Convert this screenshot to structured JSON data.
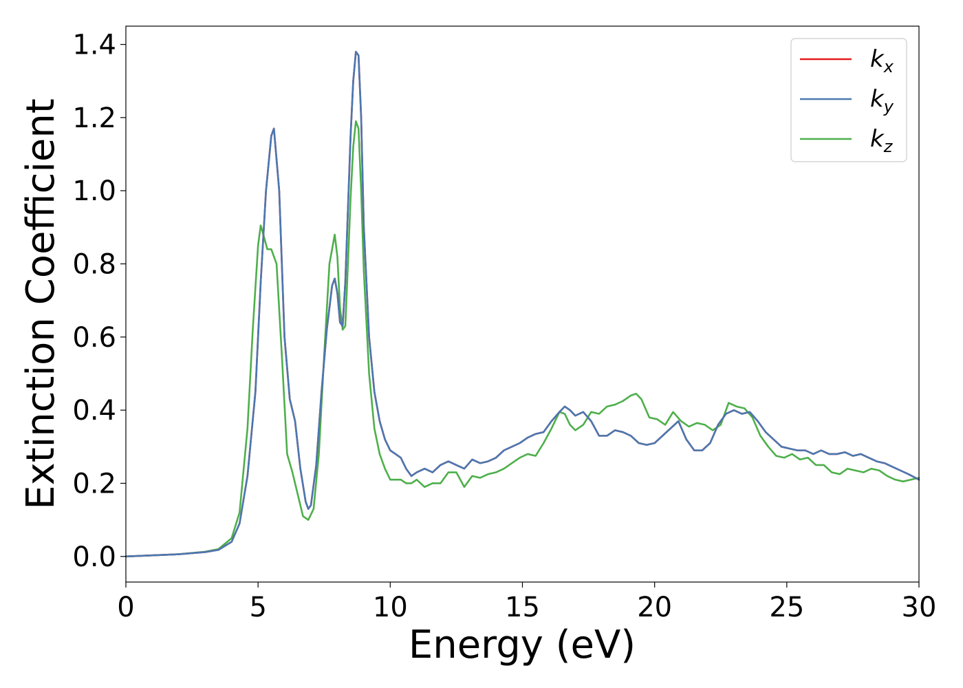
{
  "chart_data": {
    "type": "line",
    "title": "",
    "xlabel": "Energy (eV)",
    "ylabel": "Extinction Coefficient",
    "xlim": [
      0,
      30
    ],
    "ylim": [
      -0.07,
      1.45
    ],
    "xticks": [
      0,
      5,
      10,
      15,
      20,
      25,
      30
    ],
    "xtick_labels": [
      "0",
      "5",
      "10",
      "15",
      "20",
      "25",
      "30"
    ],
    "yticks": [
      0.0,
      0.2,
      0.4,
      0.6,
      0.8,
      1.0,
      1.2,
      1.4
    ],
    "ytick_labels": [
      "0.0",
      "0.2",
      "0.4",
      "0.6",
      "0.8",
      "1.0",
      "1.2",
      "1.4"
    ],
    "grid": false,
    "legend_position": "top-right",
    "colors": {
      "kx": "#e41a1c",
      "ky": "#4a78b0",
      "kz": "#4daf4a"
    },
    "series": [
      {
        "name": "kx",
        "legend_base": "k",
        "legend_sub": "x",
        "color": "#e41a1c",
        "x": [
          0,
          1,
          2,
          3,
          3.5,
          4,
          4.3,
          4.6,
          4.9,
          5.1,
          5.3,
          5.5,
          5.6,
          5.8,
          6.0,
          6.2,
          6.4,
          6.6,
          6.8,
          6.9,
          7.0,
          7.2,
          7.4,
          7.6,
          7.8,
          7.9,
          8.0,
          8.1,
          8.2,
          8.3,
          8.4,
          8.5,
          8.6,
          8.7,
          8.8,
          8.9,
          9.0,
          9.2,
          9.4,
          9.6,
          9.8,
          10.0,
          10.2,
          10.4,
          10.6,
          10.8,
          11.0,
          11.3,
          11.6,
          11.9,
          12.2,
          12.5,
          12.8,
          13.1,
          13.4,
          13.7,
          14.0,
          14.3,
          14.6,
          14.9,
          15.2,
          15.5,
          15.8,
          16.1,
          16.4,
          16.6,
          16.8,
          17.0,
          17.3,
          17.6,
          17.9,
          18.2,
          18.5,
          18.8,
          19.1,
          19.4,
          19.7,
          20.0,
          20.3,
          20.6,
          20.9,
          21.2,
          21.5,
          21.8,
          22.1,
          22.4,
          22.7,
          23.0,
          23.3,
          23.6,
          23.9,
          24.2,
          24.5,
          24.8,
          25.1,
          25.4,
          25.7,
          26.0,
          26.3,
          26.6,
          26.9,
          27.2,
          27.5,
          27.8,
          28.1,
          28.4,
          28.7,
          29.0,
          29.3,
          29.6,
          30.0
        ],
        "values": [
          0.0,
          0.003,
          0.006,
          0.012,
          0.018,
          0.04,
          0.09,
          0.22,
          0.45,
          0.75,
          1.0,
          1.15,
          1.17,
          1.0,
          0.6,
          0.43,
          0.37,
          0.24,
          0.15,
          0.13,
          0.14,
          0.25,
          0.45,
          0.62,
          0.74,
          0.76,
          0.72,
          0.64,
          0.63,
          0.75,
          0.95,
          1.15,
          1.3,
          1.38,
          1.37,
          1.2,
          0.9,
          0.6,
          0.45,
          0.37,
          0.32,
          0.29,
          0.28,
          0.27,
          0.24,
          0.22,
          0.23,
          0.24,
          0.23,
          0.25,
          0.26,
          0.25,
          0.24,
          0.265,
          0.255,
          0.26,
          0.27,
          0.29,
          0.3,
          0.31,
          0.325,
          0.335,
          0.34,
          0.37,
          0.395,
          0.41,
          0.4,
          0.385,
          0.395,
          0.37,
          0.33,
          0.33,
          0.345,
          0.34,
          0.33,
          0.31,
          0.305,
          0.31,
          0.33,
          0.35,
          0.37,
          0.32,
          0.29,
          0.29,
          0.31,
          0.36,
          0.39,
          0.4,
          0.39,
          0.395,
          0.37,
          0.34,
          0.32,
          0.3,
          0.295,
          0.29,
          0.29,
          0.28,
          0.29,
          0.28,
          0.28,
          0.285,
          0.275,
          0.28,
          0.27,
          0.26,
          0.255,
          0.245,
          0.235,
          0.225,
          0.21
        ]
      },
      {
        "name": "ky",
        "legend_base": "k",
        "legend_sub": "y",
        "color": "#4a78b0",
        "x": [
          0,
          1,
          2,
          3,
          3.5,
          4,
          4.3,
          4.6,
          4.9,
          5.1,
          5.3,
          5.5,
          5.6,
          5.8,
          6.0,
          6.2,
          6.4,
          6.6,
          6.8,
          6.9,
          7.0,
          7.2,
          7.4,
          7.6,
          7.8,
          7.9,
          8.0,
          8.1,
          8.2,
          8.3,
          8.4,
          8.5,
          8.6,
          8.7,
          8.8,
          8.9,
          9.0,
          9.2,
          9.4,
          9.6,
          9.8,
          10.0,
          10.2,
          10.4,
          10.6,
          10.8,
          11.0,
          11.3,
          11.6,
          11.9,
          12.2,
          12.5,
          12.8,
          13.1,
          13.4,
          13.7,
          14.0,
          14.3,
          14.6,
          14.9,
          15.2,
          15.5,
          15.8,
          16.1,
          16.4,
          16.6,
          16.8,
          17.0,
          17.3,
          17.6,
          17.9,
          18.2,
          18.5,
          18.8,
          19.1,
          19.4,
          19.7,
          20.0,
          20.3,
          20.6,
          20.9,
          21.2,
          21.5,
          21.8,
          22.1,
          22.4,
          22.7,
          23.0,
          23.3,
          23.6,
          23.9,
          24.2,
          24.5,
          24.8,
          25.1,
          25.4,
          25.7,
          26.0,
          26.3,
          26.6,
          26.9,
          27.2,
          27.5,
          27.8,
          28.1,
          28.4,
          28.7,
          29.0,
          29.3,
          29.6,
          30.0
        ],
        "values": [
          0.0,
          0.003,
          0.006,
          0.012,
          0.018,
          0.04,
          0.09,
          0.22,
          0.45,
          0.75,
          1.0,
          1.15,
          1.17,
          1.0,
          0.6,
          0.43,
          0.37,
          0.24,
          0.15,
          0.13,
          0.14,
          0.25,
          0.45,
          0.62,
          0.74,
          0.76,
          0.72,
          0.64,
          0.63,
          0.75,
          0.95,
          1.15,
          1.3,
          1.38,
          1.37,
          1.2,
          0.9,
          0.6,
          0.45,
          0.37,
          0.32,
          0.29,
          0.28,
          0.27,
          0.24,
          0.22,
          0.23,
          0.24,
          0.23,
          0.25,
          0.26,
          0.25,
          0.24,
          0.265,
          0.255,
          0.26,
          0.27,
          0.29,
          0.3,
          0.31,
          0.325,
          0.335,
          0.34,
          0.37,
          0.395,
          0.41,
          0.4,
          0.385,
          0.395,
          0.37,
          0.33,
          0.33,
          0.345,
          0.34,
          0.33,
          0.31,
          0.305,
          0.31,
          0.33,
          0.35,
          0.37,
          0.32,
          0.29,
          0.29,
          0.31,
          0.36,
          0.39,
          0.4,
          0.39,
          0.395,
          0.37,
          0.34,
          0.32,
          0.3,
          0.295,
          0.29,
          0.29,
          0.28,
          0.29,
          0.28,
          0.28,
          0.285,
          0.275,
          0.28,
          0.27,
          0.26,
          0.255,
          0.245,
          0.235,
          0.225,
          0.21
        ]
      },
      {
        "name": "kz",
        "legend_base": "k",
        "legend_sub": "z",
        "color": "#4daf4a",
        "x": [
          0,
          1,
          2,
          3,
          3.5,
          4,
          4.3,
          4.6,
          4.8,
          5.0,
          5.1,
          5.2,
          5.35,
          5.5,
          5.7,
          5.9,
          6.1,
          6.3,
          6.5,
          6.7,
          6.9,
          7.1,
          7.3,
          7.5,
          7.7,
          7.9,
          8.0,
          8.1,
          8.2,
          8.3,
          8.4,
          8.5,
          8.6,
          8.7,
          8.8,
          8.9,
          9.0,
          9.2,
          9.4,
          9.6,
          9.8,
          10.0,
          10.2,
          10.4,
          10.6,
          10.8,
          11.0,
          11.3,
          11.6,
          11.9,
          12.2,
          12.5,
          12.8,
          13.1,
          13.4,
          13.7,
          14.0,
          14.3,
          14.6,
          14.9,
          15.2,
          15.5,
          15.8,
          16.1,
          16.4,
          16.6,
          16.8,
          17.0,
          17.3,
          17.6,
          17.9,
          18.2,
          18.5,
          18.8,
          19.1,
          19.3,
          19.5,
          19.8,
          20.1,
          20.4,
          20.7,
          21.0,
          21.3,
          21.6,
          21.9,
          22.2,
          22.5,
          22.8,
          23.1,
          23.4,
          23.7,
          24.0,
          24.3,
          24.6,
          24.9,
          25.2,
          25.5,
          25.8,
          26.1,
          26.4,
          26.7,
          27.0,
          27.3,
          27.6,
          27.9,
          28.2,
          28.5,
          28.8,
          29.1,
          29.4,
          29.7,
          30.0
        ],
        "values": [
          0.0,
          0.003,
          0.006,
          0.013,
          0.02,
          0.05,
          0.12,
          0.35,
          0.62,
          0.85,
          0.905,
          0.88,
          0.84,
          0.84,
          0.8,
          0.55,
          0.28,
          0.23,
          0.17,
          0.11,
          0.1,
          0.13,
          0.28,
          0.55,
          0.8,
          0.88,
          0.82,
          0.68,
          0.62,
          0.63,
          0.8,
          0.98,
          1.12,
          1.19,
          1.17,
          1.0,
          0.78,
          0.5,
          0.35,
          0.28,
          0.24,
          0.21,
          0.21,
          0.21,
          0.2,
          0.2,
          0.21,
          0.19,
          0.2,
          0.2,
          0.23,
          0.23,
          0.19,
          0.22,
          0.215,
          0.225,
          0.23,
          0.24,
          0.255,
          0.27,
          0.28,
          0.275,
          0.31,
          0.35,
          0.395,
          0.39,
          0.36,
          0.345,
          0.36,
          0.395,
          0.39,
          0.41,
          0.415,
          0.425,
          0.44,
          0.445,
          0.43,
          0.38,
          0.375,
          0.36,
          0.395,
          0.37,
          0.355,
          0.365,
          0.36,
          0.345,
          0.36,
          0.42,
          0.41,
          0.405,
          0.38,
          0.33,
          0.3,
          0.275,
          0.27,
          0.28,
          0.265,
          0.27,
          0.25,
          0.25,
          0.23,
          0.225,
          0.24,
          0.235,
          0.23,
          0.24,
          0.235,
          0.22,
          0.21,
          0.205,
          0.21,
          0.215
        ]
      }
    ]
  }
}
